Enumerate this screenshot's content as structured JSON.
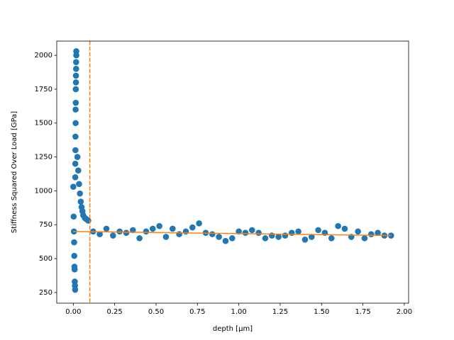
{
  "chart_data": {
    "type": "scatter",
    "xlabel": "depth [µm]",
    "ylabel": "Stiffness Squared Over Load [GPa]",
    "xlim": [
      -0.1,
      2.026
    ],
    "ylim": [
      171,
      2105
    ],
    "xticks": [
      {
        "value": 0,
        "label": "0.00"
      },
      {
        "value": 0.25,
        "label": "0.25"
      },
      {
        "value": 0.5,
        "label": "0.50"
      },
      {
        "value": 0.75,
        "label": "0.75"
      },
      {
        "value": 1,
        "label": "1.00"
      },
      {
        "value": 1.25,
        "label": "1.25"
      },
      {
        "value": 1.5,
        "label": "1.50"
      },
      {
        "value": 1.75,
        "label": "1.75"
      },
      {
        "value": 2,
        "label": "2.00"
      }
    ],
    "yticks": [
      250,
      500,
      750,
      1000,
      1250,
      1500,
      1750,
      2000
    ],
    "grid": false,
    "series": [
      {
        "kind": "points",
        "color": "#1f77b4",
        "x": [
          0,
          0.002,
          0.004,
          0.005,
          0.006,
          0.007,
          0.008,
          0.009,
          0.01,
          0.011,
          0.012,
          0.012,
          0.013,
          0.013,
          0.014,
          0.014,
          0.015,
          0.015,
          0.016,
          0.016,
          0.017,
          0.017,
          0.018,
          0.018,
          0.025,
          0.03,
          0.035,
          0.04,
          0.045,
          0.05,
          0.055,
          0.06,
          0.07,
          0.08,
          0.09,
          0.12,
          0.16,
          0.2,
          0.24,
          0.28,
          0.32,
          0.36,
          0.4,
          0.44,
          0.48,
          0.52,
          0.56,
          0.6,
          0.64,
          0.68,
          0.72,
          0.76,
          0.8,
          0.84,
          0.88,
          0.92,
          0.96,
          1.0,
          1.04,
          1.08,
          1.12,
          1.16,
          1.2,
          1.24,
          1.28,
          1.32,
          1.36,
          1.4,
          1.44,
          1.48,
          1.52,
          1.56,
          1.6,
          1.64,
          1.68,
          1.72,
          1.76,
          1.8,
          1.84,
          1.88,
          1.92
        ],
        "values": [
          1030,
          810,
          700,
          620,
          520,
          440,
          420,
          330,
          300,
          270,
          1100,
          1200,
          1300,
          1400,
          1500,
          1600,
          1650,
          1750,
          1800,
          1850,
          1900,
          1950,
          2000,
          2030,
          1250,
          1150,
          1050,
          980,
          920,
          880,
          850,
          820,
          800,
          790,
          780,
          700,
          680,
          720,
          670,
          700,
          690,
          710,
          650,
          700,
          720,
          740,
          660,
          720,
          680,
          700,
          730,
          760,
          690,
          680,
          660,
          630,
          650,
          700,
          690,
          710,
          690,
          650,
          670,
          660,
          670,
          690,
          700,
          640,
          660,
          710,
          690,
          650,
          740,
          720,
          660,
          700,
          650,
          680,
          690,
          670,
          670
        ]
      },
      {
        "kind": "line",
        "color": "#ff7f0e",
        "x": [
          0,
          1.92
        ],
        "values": [
          700,
          670
        ]
      }
    ],
    "vline": {
      "x": 0.1,
      "color": "#ff7f0e",
      "style": "dashed"
    }
  }
}
